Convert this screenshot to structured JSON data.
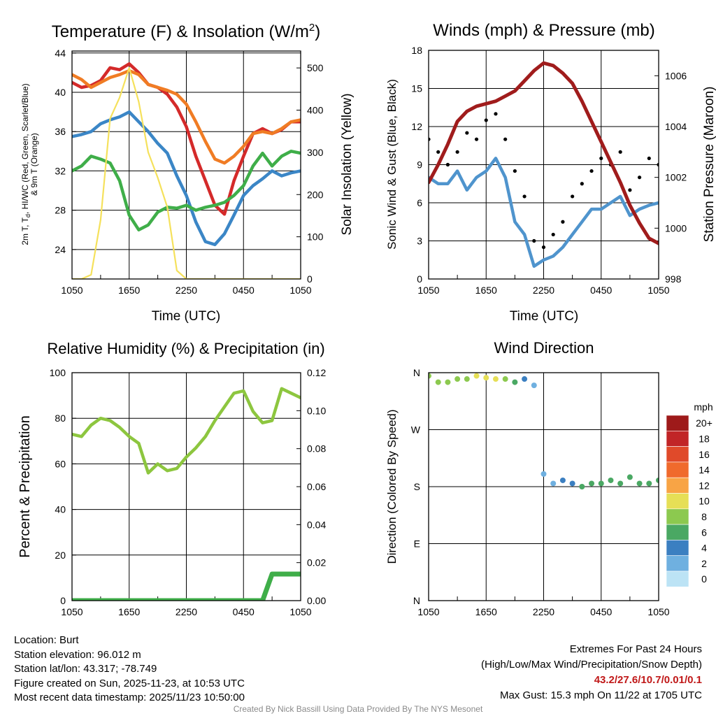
{
  "time_ticks": [
    "1050",
    "1650",
    "2250",
    "0450",
    "1050"
  ],
  "panels": {
    "temperature": {
      "title_main": "Temperature (F) & Insolation (W/m",
      "title_sup": "2",
      "title_end": ")",
      "ylabel_left_line1": "2m T, T",
      "ylabel_left_sub": "d",
      "ylabel_left_line1_rest": ", HI/WC (Red, Green, Scarlet/Blue)",
      "ylabel_left_line2": "& 9m T (Orange)",
      "ylabel_right": "Solar Insolation (Yellow)",
      "xlabel": "Time (UTC)"
    },
    "winds": {
      "title": "Winds (mph) & Pressure (mb)",
      "ylabel_left": "Sonic Wind & Gust (Blue, Black)",
      "ylabel_right": "Station Pressure (Maroon)",
      "xlabel": "Time (UTC)"
    },
    "humidity": {
      "title": "Relative Humidity (%) & Precipitation (in)",
      "ylabel_left": "Percent & Precipitation"
    },
    "direction": {
      "title": "Wind Direction",
      "ylabel_left": "Direction (Colored By Speed)"
    }
  },
  "chart_data": [
    {
      "type": "line",
      "title": "Temperature (F) & Insolation (W/m2)",
      "xlabel": "Time (UTC)",
      "x_hours": [
        0,
        1,
        2,
        3,
        4,
        5,
        6,
        7,
        8,
        9,
        10,
        11,
        12,
        13,
        14,
        15,
        16,
        17,
        18,
        19,
        20,
        21,
        22,
        23,
        24
      ],
      "ylim": [
        21,
        44.2
      ],
      "yticks": [
        24,
        28,
        32,
        36,
        40,
        44
      ],
      "y2lim": [
        0,
        540
      ],
      "y2ticks": [
        0,
        100,
        200,
        300,
        400,
        500
      ],
      "series": [
        {
          "name": "2m T",
          "color": "#d42a2a",
          "values": [
            41.0,
            40.5,
            40.7,
            41.2,
            42.5,
            42.3,
            42.9,
            42.0,
            40.8,
            40.5,
            39.8,
            38.5,
            36.5,
            33.5,
            31.0,
            28.5,
            27.6,
            31.0,
            33.5,
            35.8,
            36.3,
            35.8,
            36.2,
            37.0,
            37.0
          ]
        },
        {
          "name": "9m T",
          "color": "#f07c24",
          "values": [
            41.8,
            41.3,
            40.5,
            41.0,
            41.5,
            41.8,
            42.2,
            41.8,
            40.8,
            40.5,
            40.2,
            39.8,
            38.8,
            37.0,
            35.0,
            33.2,
            32.8,
            33.5,
            34.5,
            35.8,
            36.0,
            35.8,
            36.3,
            37.0,
            37.2
          ]
        },
        {
          "name": "HI/WC",
          "color": "#3b86c6",
          "values": [
            35.5,
            35.7,
            36.0,
            36.8,
            37.2,
            37.5,
            38.0,
            37.0,
            36.0,
            34.8,
            33.8,
            31.5,
            29.5,
            26.8,
            24.8,
            24.5,
            25.6,
            27.5,
            29.5,
            30.5,
            31.2,
            32.0,
            31.5,
            31.8,
            32.0
          ]
        },
        {
          "name": "Td",
          "color": "#3fae49",
          "values": [
            32.0,
            32.5,
            33.5,
            33.2,
            32.8,
            31.0,
            27.5,
            26.0,
            26.5,
            27.8,
            28.3,
            28.2,
            28.5,
            28.0,
            28.3,
            28.5,
            28.8,
            29.5,
            30.5,
            32.5,
            33.8,
            32.5,
            33.5,
            34.0,
            33.8
          ]
        },
        {
          "name": "Solar Insolation",
          "color": "#f5e15c",
          "axis": "right",
          "values": [
            0,
            0,
            10,
            140,
            380,
            430,
            500,
            420,
            300,
            240,
            170,
            20,
            0,
            0,
            0,
            0,
            0,
            0,
            0,
            0,
            0,
            0,
            0,
            0,
            0
          ]
        }
      ]
    },
    {
      "type": "line",
      "title": "Winds (mph) & Pressure (mb)",
      "xlabel": "Time (UTC)",
      "x_hours": [
        0,
        1,
        2,
        3,
        4,
        5,
        6,
        7,
        8,
        9,
        10,
        11,
        12,
        13,
        14,
        15,
        16,
        17,
        18,
        19,
        20,
        21,
        22,
        23,
        24
      ],
      "ylim": [
        0,
        18
      ],
      "yticks": [
        0,
        3,
        6,
        9,
        12,
        15,
        18
      ],
      "y2lim": [
        998,
        1007
      ],
      "y2ticks": [
        998,
        1000,
        1002,
        1004,
        1006
      ],
      "series": [
        {
          "name": "Sonic Wind",
          "color": "#4f94cd",
          "values": [
            8.0,
            7.5,
            7.5,
            8.5,
            7.0,
            8.0,
            8.5,
            9.5,
            8.0,
            4.5,
            3.5,
            1.0,
            1.5,
            1.8,
            2.5,
            3.5,
            4.5,
            5.5,
            5.5,
            6.0,
            6.5,
            5.0,
            5.5,
            5.8,
            6.0
          ]
        },
        {
          "name": "Gust",
          "color": "#000000",
          "values": [
            11.0,
            10.0,
            9.0,
            10.0,
            11.5,
            11.0,
            12.5,
            13.0,
            11.0,
            8.5,
            6.5,
            3.0,
            2.5,
            3.5,
            4.5,
            6.5,
            7.5,
            8.5,
            9.5,
            9.0,
            10.0,
            7.0,
            8.0,
            9.5,
            9.0
          ]
        },
        {
          "name": "Station Pressure",
          "color": "#a01c1c",
          "axis": "right",
          "values": [
            1001.8,
            1002.5,
            1003.3,
            1004.2,
            1004.6,
            1004.8,
            1004.9,
            1005.0,
            1005.2,
            1005.4,
            1005.8,
            1006.2,
            1006.5,
            1006.4,
            1006.1,
            1005.7,
            1005.0,
            1004.2,
            1003.4,
            1002.6,
            1001.8,
            1000.9,
            1000.2,
            999.6,
            999.4
          ]
        }
      ]
    },
    {
      "type": "line",
      "title": "Relative Humidity (%) & Precipitation (in)",
      "x_hours": [
        0,
        1,
        2,
        3,
        4,
        5,
        6,
        7,
        8,
        9,
        10,
        11,
        12,
        13,
        14,
        15,
        16,
        17,
        18,
        19,
        20,
        21,
        22,
        23,
        24
      ],
      "ylim": [
        0,
        100
      ],
      "yticks": [
        0,
        20,
        40,
        60,
        80,
        100
      ],
      "y2lim": [
        0,
        0.12
      ],
      "y2ticks": [
        0.0,
        0.02,
        0.04,
        0.06,
        0.08,
        0.1,
        0.12
      ],
      "series": [
        {
          "name": "Relative Humidity",
          "color": "#8dc63f",
          "values": [
            73,
            72,
            77,
            80,
            79,
            76,
            72,
            69,
            56,
            60,
            57,
            58,
            63,
            67,
            72,
            79,
            85,
            91,
            92,
            83,
            78,
            79,
            93,
            91,
            89
          ]
        },
        {
          "name": "Precipitation",
          "color": "#3fae49",
          "axis": "right",
          "values": [
            0,
            0,
            0,
            0,
            0,
            0,
            0,
            0,
            0,
            0,
            0,
            0,
            0,
            0,
            0,
            0,
            0,
            0,
            0,
            0,
            0,
            0.014,
            0.014,
            0.014,
            0.014
          ]
        }
      ]
    },
    {
      "type": "scatter",
      "title": "Wind Direction",
      "ylabel": "Direction (Colored By Speed)",
      "yticks": [
        "N",
        "W",
        "S",
        "E",
        "N"
      ],
      "legend_title": "mph",
      "legend_labels": [
        "20+",
        "18",
        "16",
        "14",
        "12",
        "10",
        "8",
        "6",
        "4",
        "2",
        "0"
      ],
      "legend_colors": [
        "#9e1a1a",
        "#c12527",
        "#e04a2a",
        "#f06a2c",
        "#f8a445",
        "#e6df56",
        "#8cc94f",
        "#4aa863",
        "#3b7fc1",
        "#6fb0e0",
        "#bce3f5"
      ],
      "x_hours": [
        0,
        1,
        2,
        3,
        4,
        5,
        6,
        7,
        8,
        9,
        10,
        11,
        12,
        13,
        14,
        15,
        16,
        17,
        18,
        19,
        20,
        21,
        22,
        23,
        24
      ],
      "direction_deg": [
        355,
        345,
        345,
        350,
        350,
        355,
        352,
        350,
        350,
        345,
        350,
        340,
        200,
        185,
        190,
        185,
        180,
        185,
        185,
        190,
        185,
        195,
        185,
        185,
        190
      ],
      "speed_mph": [
        8,
        8,
        7,
        8,
        8,
        9,
        9,
        9,
        8,
        5,
        4,
        2,
        2,
        2,
        3,
        4,
        5,
        6,
        6,
        6,
        6,
        5,
        5,
        6,
        6
      ]
    }
  ],
  "info": {
    "location": "Location: Burt",
    "elevation": "Station elevation: 96.012 m",
    "latlon": "Station lat/lon: 43.317; -78.749",
    "created": "Figure created on Sun, 2025-11-23, at 10:53 UTC",
    "recent": "Most recent data timestamp: 2025/11/23 10:50:00"
  },
  "extremes": {
    "title": "Extremes For Past 24 Hours",
    "subtitle": "(High/Low/Max Wind/Precipitation/Snow Depth)",
    "values": "43.2/27.6/10.7/0.01/0.1",
    "gust": "Max Gust: 15.3 mph On 11/22 at 1705 UTC"
  },
  "credit": "Created By Nick Bassill Using Data Provided By The NYS Mesonet"
}
